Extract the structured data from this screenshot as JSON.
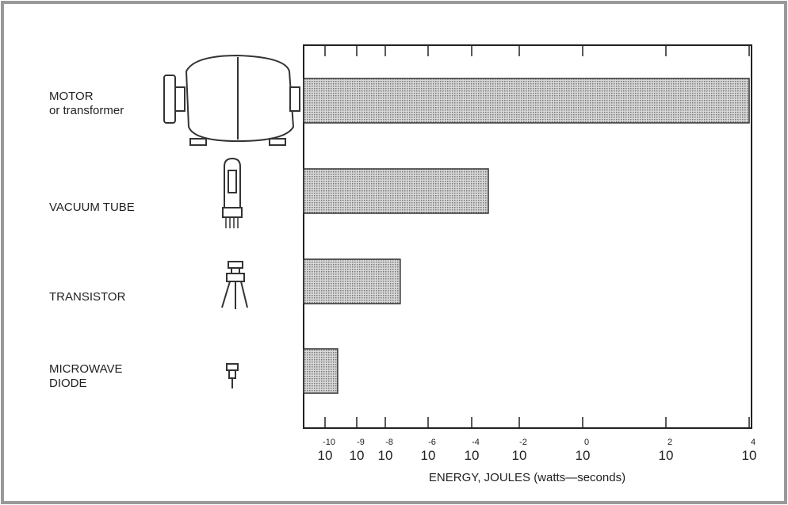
{
  "chart_data": {
    "type": "bar",
    "orientation": "horizontal",
    "categories": [
      "MOTOR\nor transformer",
      "VACUUM  TUBE",
      "TRANSISTOR",
      "MICROWAVE\nDIODE"
    ],
    "values": [
      10000,
      0.0005,
      5e-08,
      2.5e-10
    ],
    "color": "#b8b8b8",
    "xlabel": "ENERGY,  JOULES (watts—seconds)",
    "log_scale": true,
    "xlim": [
      2e-11,
      11000
    ],
    "xticks": [
      {
        "value": 1e-10,
        "label": "10",
        "exponent": "-10"
      },
      {
        "value": 1e-09,
        "label": "10",
        "exponent": "-9"
      },
      {
        "value": 1e-08,
        "label": "10",
        "exponent": "-8"
      },
      {
        "value": 1e-06,
        "label": "10",
        "exponent": "-6"
      },
      {
        "value": 0.0001,
        "label": "10",
        "exponent": "-4"
      },
      {
        "value": 0.01,
        "label": "10",
        "exponent": "-2"
      },
      {
        "value": 1,
        "label": "10",
        "exponent": "0"
      },
      {
        "value": 100,
        "label": "10",
        "exponent": "2"
      },
      {
        "value": 10000,
        "label": "10",
        "exponent": "4"
      }
    ]
  }
}
